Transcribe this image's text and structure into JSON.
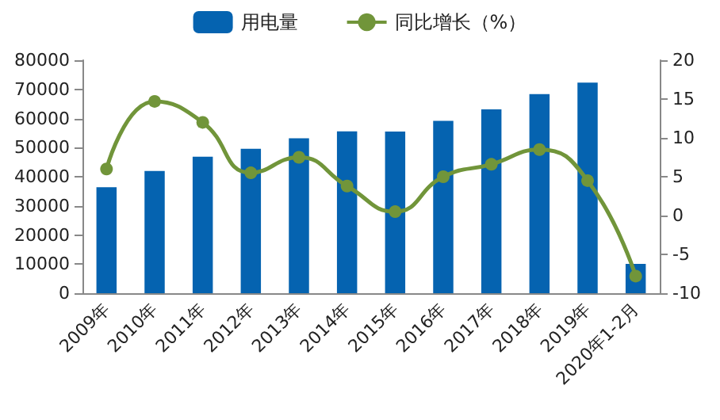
{
  "chart_data": {
    "type": "bar",
    "categories": [
      "2009年",
      "2010年",
      "2011年",
      "2012年",
      "2013年",
      "2014年",
      "2015年",
      "2016年",
      "2017年",
      "2018年",
      "2019年",
      "2020年1-2月"
    ],
    "series": [
      {
        "name": "用电量",
        "color": "#0563b0",
        "values": [
          36400,
          42000,
          46900,
          49600,
          53200,
          55600,
          55500,
          59200,
          63100,
          68400,
          72300,
          10100
        ]
      },
      {
        "name": "同比增长（%）",
        "type": "line",
        "axis": "y2",
        "color": "#71953a",
        "marker": "circle",
        "values": [
          6.0,
          14.7,
          12.0,
          5.5,
          7.5,
          3.8,
          0.5,
          5.0,
          6.6,
          8.5,
          4.5,
          -7.8
        ]
      }
    ],
    "ylim": [
      0,
      80000
    ],
    "yticks": [
      0,
      10000,
      20000,
      30000,
      40000,
      50000,
      60000,
      70000,
      80000
    ],
    "y2lim": [
      -10,
      20
    ],
    "y2ticks": [
      -10,
      -5,
      0,
      5,
      10,
      15,
      20
    ],
    "grid": false,
    "legend": "top"
  }
}
